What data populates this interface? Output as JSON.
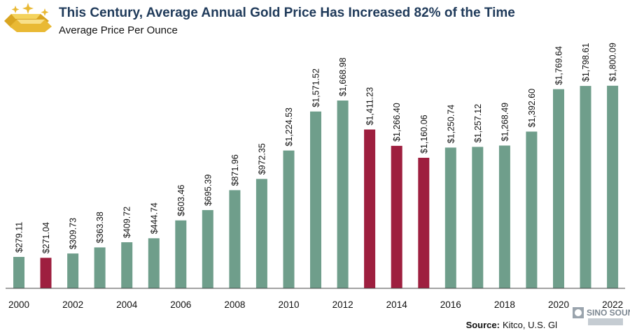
{
  "chart_data": {
    "type": "bar",
    "title": "This Century, Average Annual Gold Price Has Increased 82% of the Time",
    "subtitle": "Average Price Per Ounce",
    "xlabel": "",
    "ylabel": "",
    "ylim": [
      0,
      1900
    ],
    "grid": false,
    "legend": "none",
    "categories": [
      "2000",
      "2001",
      "2002",
      "2003",
      "2004",
      "2005",
      "2006",
      "2007",
      "2008",
      "2009",
      "2010",
      "2011",
      "2012",
      "2013",
      "2014",
      "2015",
      "2016",
      "2017",
      "2018",
      "2019",
      "2020",
      "2021",
      "2022"
    ],
    "values": [
      279.11,
      271.04,
      309.73,
      363.38,
      409.72,
      444.74,
      603.46,
      695.39,
      871.96,
      972.35,
      1224.53,
      1571.52,
      1668.98,
      1411.23,
      1266.4,
      1160.06,
      1250.74,
      1257.12,
      1268.49,
      1392.6,
      1769.64,
      1798.61,
      1800.09
    ],
    "value_labels": [
      "$279.11",
      "$271.04",
      "$309.73",
      "$363.38",
      "$409.72",
      "$444.74",
      "$603.46",
      "$695.39",
      "$871.96",
      "$972.35",
      "$1,224.53",
      "$1,571.52",
      "$1,668.98",
      "$1,411.23",
      "$1,266.40",
      "$1,160.06",
      "$1,250.74",
      "$1,257.12",
      "$1,268.49",
      "$1,392.60",
      "$1,769.64",
      "$1,798.61",
      "$1,800.09"
    ],
    "decline_years": [
      "2001",
      "2013",
      "2014",
      "2015"
    ],
    "x_tick_labels": [
      "2000",
      "2002",
      "2004",
      "2006",
      "2008",
      "2010",
      "2012",
      "2014",
      "2016",
      "2018",
      "2020",
      "2022"
    ]
  },
  "colors": {
    "increase": "#6f9e8b",
    "decrease": "#9e1f3f",
    "title": "#1f3a5a",
    "text": "#111111",
    "axis": "#444444",
    "gold": "#e9b934"
  },
  "source": {
    "label": "Source:",
    "text": "Kitco, U.S. Gl"
  },
  "watermark": {
    "brand": "SINO SOUND"
  },
  "icons": {
    "logo": "gold-bars-icon",
    "watermark": "sino-sound-logo-icon"
  }
}
